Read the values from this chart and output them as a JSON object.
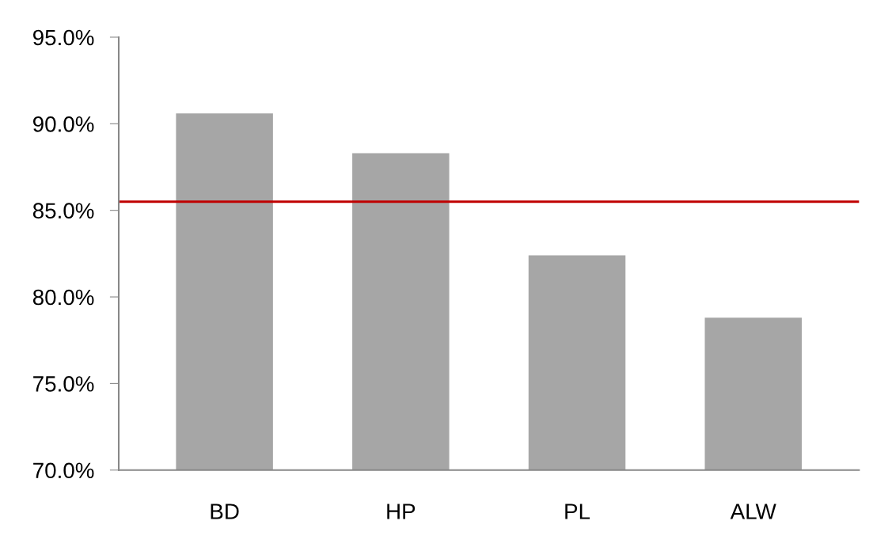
{
  "chart_data": {
    "type": "bar",
    "categories": [
      "BD",
      "HP",
      "PL",
      "ALW"
    ],
    "values": [
      90.6,
      88.3,
      82.4,
      78.8
    ],
    "color": "#a6a6a6",
    "ylim": [
      70,
      95
    ],
    "yticks": [
      {
        "value": 70,
        "label": "70.0%"
      },
      {
        "value": 75,
        "label": "75.0%"
      },
      {
        "value": 80,
        "label": "80.0%"
      },
      {
        "value": 85,
        "label": "85.0%"
      },
      {
        "value": 90,
        "label": "90.0%"
      },
      {
        "value": 95,
        "label": "95.0%"
      }
    ],
    "ref_lines": [
      {
        "axis": "y",
        "value": 85.5,
        "color": "#c00000"
      }
    ],
    "grid": false
  }
}
